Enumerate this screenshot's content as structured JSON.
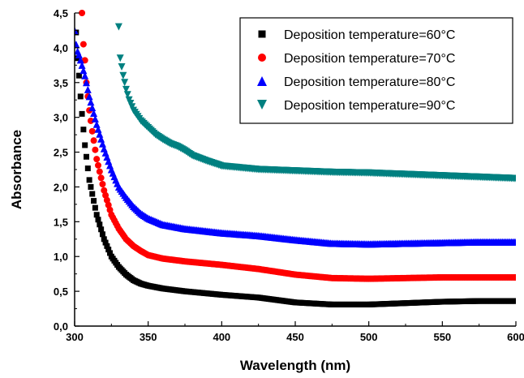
{
  "chart_data": {
    "type": "scatter",
    "xlabel": "Wavelength (nm)",
    "ylabel": "Absorbance",
    "xlim": [
      300,
      600
    ],
    "ylim": [
      0,
      4.5
    ],
    "xticks": [
      "300",
      "350",
      "400",
      "450",
      "500",
      "550",
      "600"
    ],
    "yticks": [
      "0,0",
      "0,5",
      "1,0",
      "1,5",
      "2,0",
      "2,5",
      "3,0",
      "3,5",
      "4,0",
      "4,5"
    ],
    "legend_position": "top-right",
    "series": [
      {
        "name": "Deposition temperature=60°C",
        "marker": "square",
        "color": "#000000",
        "points": [
          [
            301,
            4.22
          ],
          [
            302,
            3.85
          ],
          [
            303,
            3.6
          ],
          [
            304,
            3.3
          ],
          [
            305,
            3.05
          ],
          [
            307,
            2.6
          ],
          [
            310,
            2.1
          ],
          [
            315,
            1.6
          ],
          [
            320,
            1.25
          ],
          [
            325,
            1.0
          ],
          [
            330,
            0.85
          ],
          [
            335,
            0.74
          ],
          [
            340,
            0.66
          ],
          [
            345,
            0.61
          ],
          [
            350,
            0.58
          ],
          [
            360,
            0.54
          ],
          [
            375,
            0.5
          ],
          [
            400,
            0.45
          ],
          [
            425,
            0.41
          ],
          [
            450,
            0.34
          ],
          [
            475,
            0.31
          ],
          [
            500,
            0.31
          ],
          [
            525,
            0.33
          ],
          [
            550,
            0.35
          ],
          [
            575,
            0.36
          ],
          [
            600,
            0.36
          ]
        ]
      },
      {
        "name": "Deposition temperature=70°C",
        "marker": "circle",
        "color": "#ff0000",
        "points": [
          [
            305,
            4.5
          ],
          [
            306,
            4.05
          ],
          [
            307,
            3.82
          ],
          [
            308,
            3.5
          ],
          [
            310,
            3.1
          ],
          [
            312,
            2.8
          ],
          [
            315,
            2.4
          ],
          [
            320,
            1.95
          ],
          [
            325,
            1.6
          ],
          [
            330,
            1.4
          ],
          [
            335,
            1.25
          ],
          [
            340,
            1.15
          ],
          [
            345,
            1.08
          ],
          [
            350,
            1.02
          ],
          [
            360,
            0.97
          ],
          [
            375,
            0.93
          ],
          [
            400,
            0.88
          ],
          [
            425,
            0.82
          ],
          [
            450,
            0.74
          ],
          [
            475,
            0.69
          ],
          [
            500,
            0.68
          ],
          [
            525,
            0.69
          ],
          [
            550,
            0.7
          ],
          [
            575,
            0.7
          ],
          [
            600,
            0.7
          ]
        ]
      },
      {
        "name": "Deposition temperature=80°C",
        "marker": "triangle-up",
        "color": "#0000ff",
        "points": [
          [
            300,
            4.25
          ],
          [
            301,
            4.05
          ],
          [
            302,
            3.95
          ],
          [
            303,
            3.9
          ],
          [
            305,
            3.75
          ],
          [
            307,
            3.6
          ],
          [
            310,
            3.3
          ],
          [
            315,
            2.9
          ],
          [
            320,
            2.55
          ],
          [
            325,
            2.25
          ],
          [
            330,
            2.0
          ],
          [
            335,
            1.85
          ],
          [
            340,
            1.72
          ],
          [
            345,
            1.62
          ],
          [
            350,
            1.55
          ],
          [
            360,
            1.46
          ],
          [
            375,
            1.4
          ],
          [
            400,
            1.34
          ],
          [
            425,
            1.3
          ],
          [
            450,
            1.24
          ],
          [
            475,
            1.19
          ],
          [
            500,
            1.18
          ],
          [
            525,
            1.19
          ],
          [
            550,
            1.2
          ],
          [
            575,
            1.21
          ],
          [
            600,
            1.21
          ]
        ]
      },
      {
        "name": "Deposition temperature=90°C",
        "marker": "triangle-down",
        "color": "#008080",
        "points": [
          [
            330,
            4.3
          ],
          [
            331,
            3.85
          ],
          [
            333,
            3.6
          ],
          [
            335,
            3.4
          ],
          [
            337,
            3.25
          ],
          [
            340,
            3.1
          ],
          [
            345,
            2.95
          ],
          [
            350,
            2.85
          ],
          [
            355,
            2.75
          ],
          [
            360,
            2.68
          ],
          [
            365,
            2.62
          ],
          [
            370,
            2.58
          ],
          [
            375,
            2.52
          ],
          [
            380,
            2.45
          ],
          [
            390,
            2.37
          ],
          [
            400,
            2.3
          ],
          [
            425,
            2.25
          ],
          [
            450,
            2.23
          ],
          [
            475,
            2.21
          ],
          [
            500,
            2.2
          ],
          [
            525,
            2.18
          ],
          [
            550,
            2.16
          ],
          [
            575,
            2.14
          ],
          [
            600,
            2.12
          ]
        ]
      }
    ]
  }
}
